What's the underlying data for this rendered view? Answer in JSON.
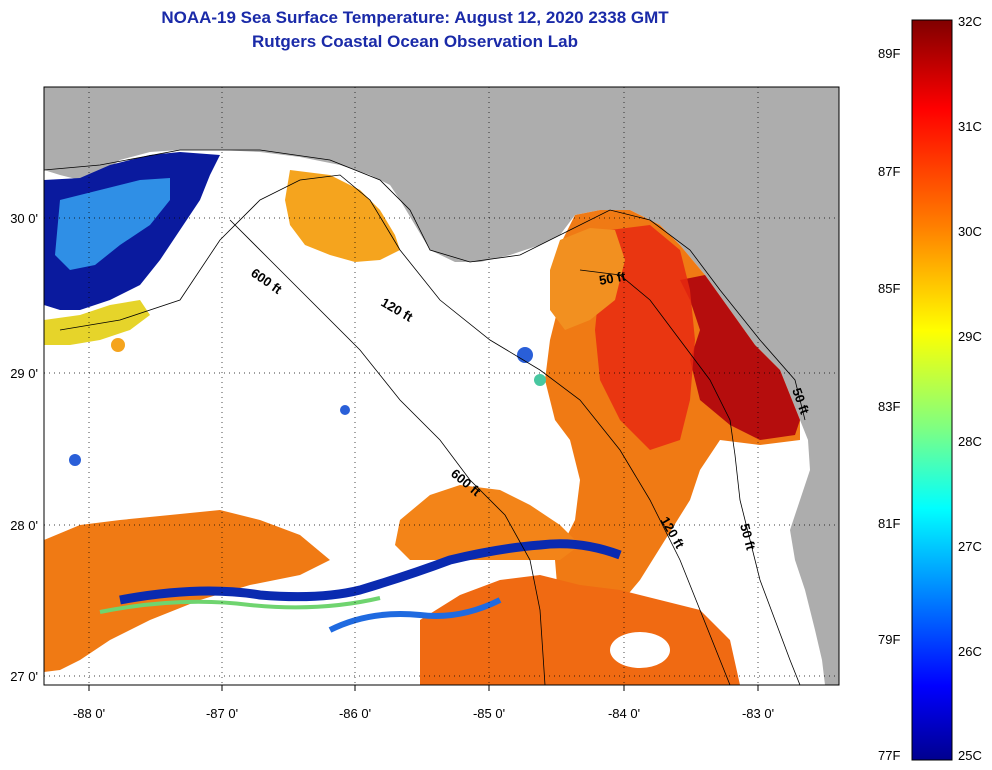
{
  "title": {
    "line1": "NOAA-19 Sea Surface Temperature:  August 12, 2020 2338 GMT",
    "line2": "Rutgers Coastal Ocean Observation Lab"
  },
  "map": {
    "longitude_labels": [
      "-88 0'",
      "-87 0'",
      "-86 0'",
      "-85 0'",
      "-84 0'",
      "-83 0'"
    ],
    "latitude_labels": [
      "30 0'",
      "29 0'",
      "28 0'",
      "27 0'"
    ],
    "depth_labels": [
      "600 ft",
      "120 ft",
      "50 ft",
      "600 ft",
      "120 ft",
      "50 ft",
      "50 ft"
    ],
    "colors": {
      "land": "#adadad",
      "no_data": "#ffffff",
      "cold": "#0a1a9e",
      "warm": "#f07a14",
      "hot": "#b50d0d"
    }
  },
  "colorbar": {
    "fahrenheit_labels": [
      "89F",
      "87F",
      "85F",
      "83F",
      "81F",
      "79F",
      "77F"
    ],
    "celsius_labels": [
      "32C",
      "31C",
      "30C",
      "29C",
      "28C",
      "27C",
      "26C",
      "25C"
    ],
    "gradient": [
      "#800000",
      "#ff0000",
      "#ff8000",
      "#ffff00",
      "#80ff80",
      "#00ffff",
      "#0080ff",
      "#0000ff",
      "#00008f"
    ]
  }
}
